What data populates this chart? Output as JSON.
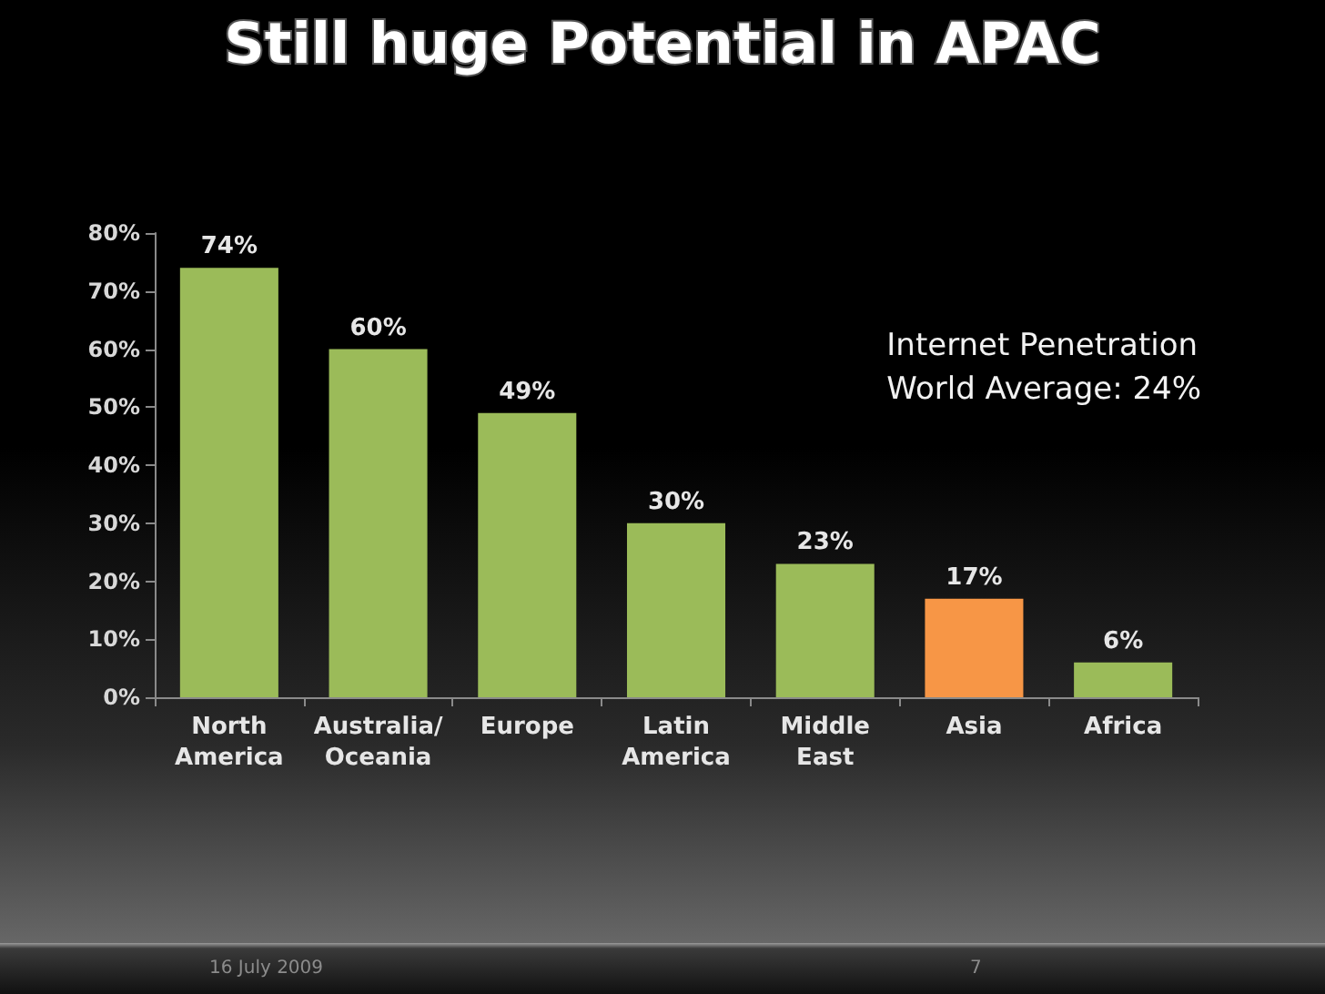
{
  "chart_data": {
    "type": "bar",
    "title": "Still huge Potential in APAC",
    "categories": [
      "North America",
      "Australia/ Oceania",
      "Europe",
      "Latin America",
      "Middle East",
      "Asia",
      "Africa"
    ],
    "values": [
      74,
      60,
      49,
      30,
      23,
      17,
      6
    ],
    "colors": [
      "#9bbb59",
      "#9bbb59",
      "#9bbb59",
      "#9bbb59",
      "#9bbb59",
      "#f79646",
      "#9bbb59"
    ],
    "value_labels": [
      "74%",
      "60%",
      "49%",
      "30%",
      "23%",
      "17%",
      "6%"
    ],
    "ylim": [
      0,
      80
    ],
    "yticks": [
      {
        "value": 0,
        "label": "0%"
      },
      {
        "value": 10,
        "label": "10%"
      },
      {
        "value": 20,
        "label": "20%"
      },
      {
        "value": 30,
        "label": "30%"
      },
      {
        "value": 40,
        "label": "40%"
      },
      {
        "value": 50,
        "label": "50%"
      },
      {
        "value": 60,
        "label": "60%"
      },
      {
        "value": 70,
        "label": "70%"
      },
      {
        "value": 80,
        "label": "80%"
      }
    ],
    "annotations": [
      "Internet Penetration\nWorld Average: 24%",
      "16 July 2009",
      "7"
    ]
  }
}
